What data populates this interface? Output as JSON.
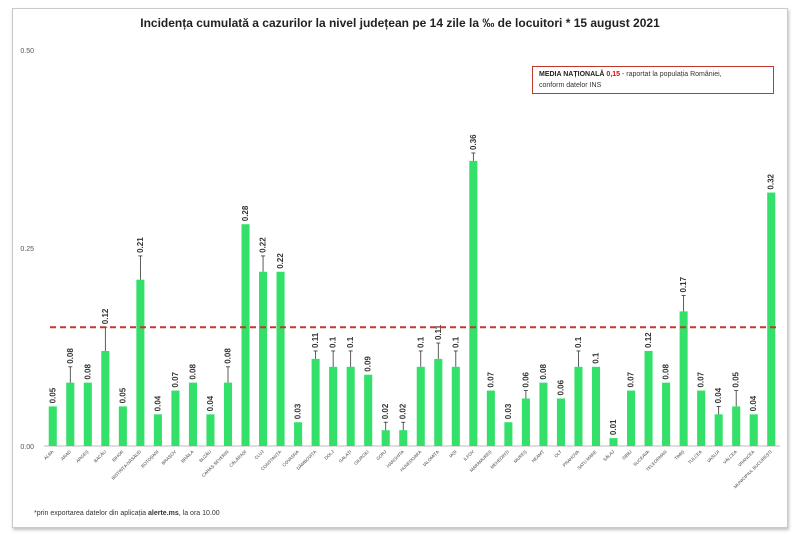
{
  "chart_data": {
    "type": "bar",
    "title": "Incidența cumulată a cazurilor la nivel județean pe 14 zile la ‰ de locuitori *  15 august 2021",
    "xlabel": "",
    "ylabel": "",
    "ylim": [
      0,
      0.5
    ],
    "yticks": [
      "0.00",
      "0.25",
      "0.50"
    ],
    "grid": false,
    "bar_color": "#33e06a",
    "reference_line": {
      "value": 0.15,
      "color": "#c0392b",
      "style": "dashed"
    },
    "categories": [
      "ALBA",
      "ARAD",
      "ARGEȘ",
      "BACĂU",
      "BIHOR",
      "BISTRIȚA-NĂSĂUD",
      "BOTOȘANI",
      "BRAȘOV",
      "BRĂILA",
      "BUZĂU",
      "CARAȘ-SEVERIN",
      "CĂLĂRAȘI",
      "CLUJ",
      "CONSTANȚA",
      "COVASNA",
      "DÂMBOVIȚA",
      "DOLJ",
      "GALAȚI",
      "GIURGIU",
      "GORJ",
      "HARGHITA",
      "HUNEDOARA",
      "IALOMIȚA",
      "IAȘI",
      "ILFOV",
      "MARAMUREȘ",
      "MEHEDINȚI",
      "MUREȘ",
      "NEAMȚ",
      "OLT",
      "PRAHOVA",
      "SATU MARE",
      "SĂLAJ",
      "SIBIU",
      "SUCEAVA",
      "TELEORMAN",
      "TIMIȘ",
      "TULCEA",
      "VASLUI",
      "VÂLCEA",
      "VRANCEA",
      "MUNICIPIUL BUCUREȘTI"
    ],
    "values": [
      0.05,
      0.08,
      0.08,
      0.12,
      0.05,
      0.21,
      0.04,
      0.07,
      0.08,
      0.04,
      0.08,
      0.28,
      0.22,
      0.22,
      0.03,
      0.11,
      0.1,
      0.1,
      0.09,
      0.02,
      0.02,
      0.1,
      0.11,
      0.1,
      0.36,
      0.07,
      0.03,
      0.06,
      0.08,
      0.06,
      0.1,
      0.1,
      0.01,
      0.07,
      0.12,
      0.08,
      0.17,
      0.07,
      0.04,
      0.05,
      0.04,
      0.32
    ],
    "labels": [
      "0.05",
      "0.08",
      "0.08",
      "0.12",
      "0.05",
      "0.21",
      "0.04",
      "0.07",
      "0.08",
      "0.04",
      "0.08",
      "0.28",
      "0.22",
      "0.22",
      "0.03",
      "0.11",
      "0.1",
      "0.1",
      "0.09",
      "0.02",
      "0.02",
      "0.1",
      "0.11",
      "0.1",
      "0.36",
      "0.07",
      "0.03",
      "0.06",
      "0.08",
      "0.06",
      "0.1",
      "0.1",
      "0.01",
      "0.07",
      "0.12",
      "0.08",
      "0.17",
      "0.07",
      "0.04",
      "0.05",
      "0.04",
      "0.32"
    ],
    "error_bars": [
      0,
      0.02,
      0,
      0.03,
      0,
      0.03,
      0,
      0,
      0,
      0,
      0.02,
      0,
      0.02,
      0,
      0,
      0.01,
      0.02,
      0.02,
      0,
      0.01,
      0.01,
      0.02,
      0.02,
      0.02,
      0.01,
      0,
      0,
      0.01,
      0,
      0,
      0.02,
      0,
      0,
      0,
      0,
      0,
      0.02,
      0,
      0.01,
      0.02,
      0,
      0
    ]
  },
  "legend": {
    "prefix": "MEDIA NAȚIONALĂ",
    "value": "0,15",
    "text": " - raportat la populația României,",
    "line2": "conform datelor INS"
  },
  "footnote": {
    "prefix": "*prin exportarea datelor din aplicația ",
    "app": "alerte.ms",
    "suffix": ", la ora 10.00"
  }
}
